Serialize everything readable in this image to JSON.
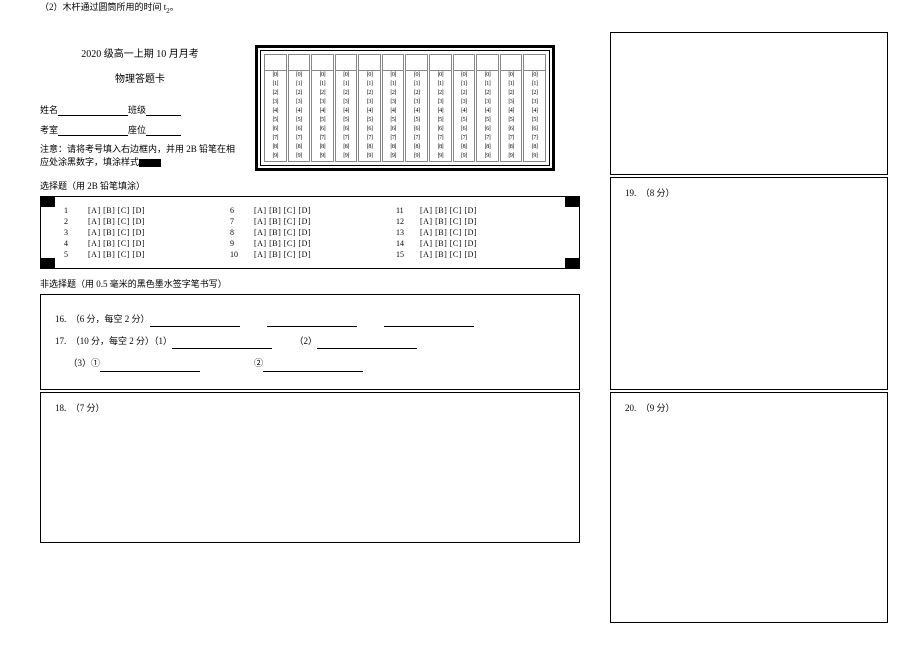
{
  "q2_text": "（2）木杆通过圆筒所用的时间 t",
  "q2_sub": "2",
  "q2_end": "。",
  "title_line1": "2020 级高一上期 10 月月考",
  "title_line2": "物理答题卡",
  "name_label": "姓名",
  "class_label": "班级",
  "room_label": "考室",
  "seat_label": "座位",
  "notice": "注意：请将考号填入右边框内，并用 2B 铅笔在相应处涂黑数字，填涂样式",
  "id_digits": [
    "0",
    "1",
    "2",
    "3",
    "4",
    "5",
    "6",
    "7",
    "8",
    "9"
  ],
  "id_col_count": 12,
  "mc_title": "选择题（用 2B 铅笔填涂）",
  "mc_rows": [
    [
      {
        "n": "1",
        "o": "[A] [B] [C] [D]"
      },
      {
        "n": "6",
        "o": "[A] [B] [C] [D]"
      },
      {
        "n": "11",
        "o": "[A] [B] [C] [D]"
      }
    ],
    [
      {
        "n": "2",
        "o": "[A] [B] [C] [D]"
      },
      {
        "n": "7",
        "o": "[A] [B] [C] [D]"
      },
      {
        "n": "12",
        "o": "[A] [B] [C] [D]"
      }
    ],
    [
      {
        "n": "3",
        "o": "[A] [B] [C] [D]"
      },
      {
        "n": "8",
        "o": "[A] [B] [C] [D]"
      },
      {
        "n": "13",
        "o": "[A] [B] [C] [D]"
      }
    ],
    [
      {
        "n": "4",
        "o": "[A] [B] [C] [D]"
      },
      {
        "n": "9",
        "o": "[A] [B] [C] [D]"
      },
      {
        "n": "14",
        "o": "[A] [B] [C] [D]"
      }
    ],
    [
      {
        "n": "5",
        "o": "[A] [B] [C] [D]"
      },
      {
        "n": "10",
        "o": "[A] [B] [C] [D]"
      },
      {
        "n": "15",
        "o": "[A] [B] [C] [D]"
      }
    ]
  ],
  "free_title": "非选择题（用 0.5 毫米的黑色墨水签字笔书写）",
  "q16_label": "16.　（6 分，每空 2 分）",
  "q17_label": "17.　（10 分，每空 2 分）（1）",
  "q17_2": "（2）",
  "q17_3": "（3）①",
  "q17_3b": "②",
  "q18_label": "18.　（7 分）",
  "q19_label": "19.　（8 分）",
  "q20_label": "20.　（9 分）"
}
